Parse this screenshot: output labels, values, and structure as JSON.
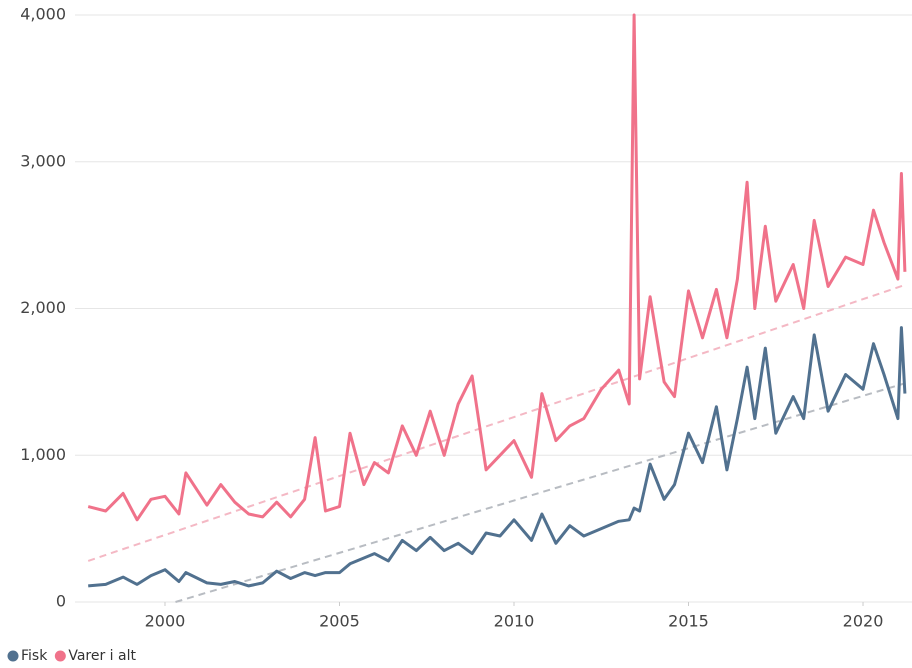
{
  "chart_data": {
    "type": "line",
    "x": [
      1997.8,
      1998.3,
      1998.8,
      1999.2,
      1999.6,
      2000.0,
      2000.4,
      2000.6,
      2001.2,
      2001.6,
      2002.0,
      2002.4,
      2002.8,
      2003.2,
      2003.6,
      2004.0,
      2004.3,
      2004.6,
      2005.0,
      2005.3,
      2005.7,
      2006.0,
      2006.4,
      2006.8,
      2007.2,
      2007.6,
      2008.0,
      2008.4,
      2008.8,
      2009.2,
      2009.6,
      2010.0,
      2010.5,
      2010.8,
      2011.2,
      2011.6,
      2012.0,
      2012.5,
      2013.0,
      2013.3,
      2013.44,
      2013.6,
      2013.9,
      2014.3,
      2014.6,
      2015.0,
      2015.4,
      2015.8,
      2016.1,
      2016.4,
      2016.68,
      2016.9,
      2017.2,
      2017.5,
      2018.0,
      2018.3,
      2018.6,
      2019.0,
      2019.5,
      2020.0,
      2020.3,
      2020.6,
      2021.0,
      2021.1,
      2021.2
    ],
    "series": [
      {
        "name": "Fisk",
        "color": "#51718f",
        "values": [
          110,
          120,
          170,
          120,
          180,
          220,
          140,
          200,
          130,
          120,
          140,
          110,
          130,
          210,
          160,
          200,
          180,
          200,
          200,
          260,
          300,
          330,
          280,
          420,
          350,
          440,
          350,
          400,
          330,
          470,
          450,
          560,
          420,
          600,
          400,
          520,
          450,
          500,
          550,
          560,
          640,
          620,
          940,
          700,
          800,
          1150,
          950,
          1330,
          900,
          1250,
          1600,
          1250,
          1730,
          1150,
          1400,
          1250,
          1820,
          1300,
          1550,
          1450,
          1760,
          1550,
          1250,
          1870,
          1420
        ]
      },
      {
        "name": "Varer i alt",
        "color": "#f0728a",
        "values": [
          650,
          620,
          740,
          560,
          700,
          720,
          600,
          880,
          660,
          800,
          680,
          600,
          580,
          680,
          580,
          700,
          1120,
          620,
          650,
          1150,
          800,
          950,
          880,
          1200,
          1000,
          1300,
          1000,
          1350,
          1540,
          900,
          1000,
          1100,
          850,
          1420,
          1100,
          1200,
          1250,
          1450,
          1580,
          1350,
          4000,
          1520,
          2080,
          1500,
          1400,
          2120,
          1800,
          2130,
          1800,
          2200,
          2860,
          2000,
          2560,
          2050,
          2300,
          2000,
          2600,
          2150,
          2350,
          2300,
          2670,
          2450,
          2200,
          2920,
          2250
        ]
      }
    ],
    "trendlines": [
      {
        "color": "#b8bcc2",
        "x": [
          2000.3,
          2021.2
        ],
        "values": [
          0,
          1490
        ]
      },
      {
        "color": "#f4b8c4",
        "x": [
          1997.8,
          2021.2
        ],
        "values": [
          280,
          2160
        ]
      }
    ],
    "xlim": [
      1997.8,
      2021.2
    ],
    "xticks": [
      2000,
      2005,
      2010,
      2015,
      2020
    ],
    "ylim": [
      0,
      4000
    ],
    "yticks": [
      0,
      {
        "value": 1000,
        "label": "1,000"
      },
      {
        "value": 2000,
        "label": "2,000"
      },
      {
        "value": 3000,
        "label": "3,000"
      },
      {
        "value": 4000,
        "label": "4,000"
      }
    ],
    "grid": true,
    "legend": "bottom-left"
  }
}
